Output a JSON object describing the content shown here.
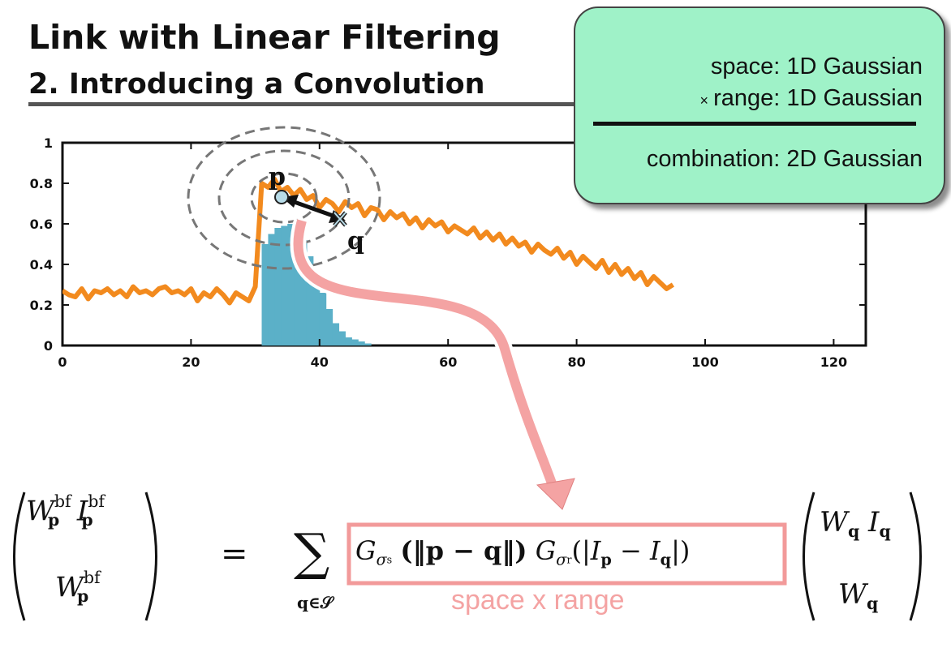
{
  "slide": {
    "title": "Link with Linear Filtering",
    "subtitle": "2. Introducing a Convolution"
  },
  "callout": {
    "line1": "space:  1D Gaussian",
    "times_symbol": "×",
    "line2": "range:  1D Gaussian",
    "line3": "combination:  2D Gaussian"
  },
  "chart_data": {
    "type": "line",
    "xlim": [
      0,
      125
    ],
    "ylim": [
      0,
      1
    ],
    "x_ticks": [
      "0",
      "20",
      "40",
      "60",
      "80",
      "100",
      "120"
    ],
    "y_ticks": [
      "0",
      "0.2",
      "0.4",
      "0.6",
      "0.8",
      "1"
    ],
    "series": [
      {
        "color": "#f28a1e",
        "type": "line",
        "x": [
          0,
          1,
          2,
          3,
          4,
          5,
          6,
          7,
          8,
          9,
          10,
          11,
          12,
          13,
          14,
          15,
          16,
          17,
          18,
          19,
          20,
          21,
          22,
          23,
          24,
          25,
          26,
          27,
          28,
          29,
          30,
          31,
          32,
          33,
          34,
          35,
          36,
          37,
          38,
          39,
          40,
          41,
          42,
          43,
          44,
          45,
          46,
          47,
          48,
          49,
          50,
          51,
          52,
          53,
          54,
          55,
          56,
          57,
          58,
          59,
          60,
          61,
          62,
          63,
          64,
          65,
          66,
          67,
          68,
          69,
          70,
          71,
          72,
          73,
          74,
          75,
          76,
          77,
          78,
          79,
          80,
          81,
          82,
          83,
          84,
          85,
          86,
          87,
          88,
          89,
          90,
          91,
          92,
          93,
          94,
          95
        ],
        "values": [
          0.27,
          0.25,
          0.24,
          0.28,
          0.23,
          0.27,
          0.26,
          0.28,
          0.25,
          0.27,
          0.24,
          0.29,
          0.26,
          0.27,
          0.25,
          0.28,
          0.29,
          0.26,
          0.27,
          0.25,
          0.28,
          0.22,
          0.26,
          0.24,
          0.28,
          0.25,
          0.21,
          0.26,
          0.24,
          0.22,
          0.29,
          0.8,
          0.78,
          0.82,
          0.76,
          0.78,
          0.74,
          0.77,
          0.72,
          0.74,
          0.68,
          0.72,
          0.7,
          0.66,
          0.71,
          0.68,
          0.7,
          0.64,
          0.68,
          0.67,
          0.62,
          0.66,
          0.63,
          0.65,
          0.6,
          0.63,
          0.58,
          0.62,
          0.59,
          0.61,
          0.56,
          0.59,
          0.57,
          0.55,
          0.58,
          0.53,
          0.56,
          0.52,
          0.55,
          0.5,
          0.53,
          0.49,
          0.51,
          0.46,
          0.5,
          0.47,
          0.45,
          0.48,
          0.43,
          0.46,
          0.4,
          0.44,
          0.41,
          0.38,
          0.42,
          0.36,
          0.4,
          0.35,
          0.38,
          0.33,
          0.36,
          0.3,
          0.34,
          0.31,
          0.28,
          0.3
        ]
      },
      {
        "color": "#5bb0c8",
        "type": "bar",
        "x": [
          31,
          32,
          33,
          34,
          35,
          36,
          37,
          38,
          39,
          40,
          41,
          42,
          43,
          44,
          45,
          46,
          47
        ],
        "values": [
          0.5,
          0.55,
          0.58,
          0.59,
          0.6,
          0.58,
          0.52,
          0.44,
          0.36,
          0.26,
          0.18,
          0.11,
          0.07,
          0.04,
          0.03,
          0.02,
          0.01
        ]
      }
    ],
    "annotations": {
      "point_p": {
        "label": "p",
        "x": 34.5,
        "y": 0.74
      },
      "point_q": {
        "label": "q",
        "x": 43.5,
        "y": 0.64
      }
    }
  },
  "formula": {
    "lhs_top_W": "W",
    "lhs_top_I": "I",
    "sup": "bf",
    "sub_p": "p",
    "lhs_bottom_W": "W",
    "equals": "=",
    "sum_symbol": "∑",
    "sum_under": "q∈𝒮",
    "boxed_term": "G",
    "sigma_s": "σ",
    "sigma_s_sub": "s",
    "sigma_r": "σ",
    "sigma_r_sub": "r",
    "norm_expr": "(‖p − q‖)",
    "abs_open": "(|",
    "minus": "−",
    "abs_close": "|)",
    "rhs_top_W": "W",
    "rhs_top_I": "I",
    "sub_q": "q",
    "rhs_bottom_W": "W",
    "boxed_label": "space x range"
  },
  "colors": {
    "signal": "#f28a1e",
    "histogram": "#5bb0c8",
    "arrow": "#f4a3a3",
    "box": "#f29a9a",
    "callout_bg": "#9ff2c8"
  }
}
